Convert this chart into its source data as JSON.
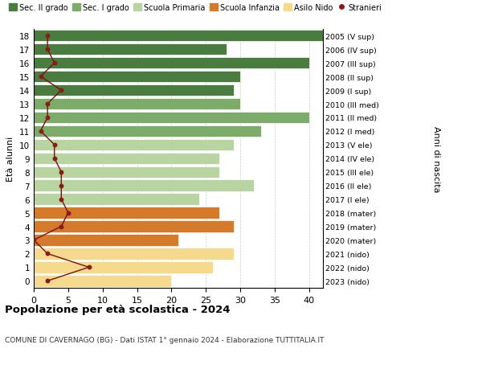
{
  "ages": [
    18,
    17,
    16,
    15,
    14,
    13,
    12,
    11,
    10,
    9,
    8,
    7,
    6,
    5,
    4,
    3,
    2,
    1,
    0
  ],
  "years": [
    "2005 (V sup)",
    "2006 (IV sup)",
    "2007 (III sup)",
    "2008 (II sup)",
    "2009 (I sup)",
    "2010 (III med)",
    "2011 (II med)",
    "2012 (I med)",
    "2013 (V ele)",
    "2014 (IV ele)",
    "2015 (III ele)",
    "2016 (II ele)",
    "2017 (I ele)",
    "2018 (mater)",
    "2019 (mater)",
    "2020 (mater)",
    "2021 (nido)",
    "2022 (nido)",
    "2023 (nido)"
  ],
  "bar_values": [
    42,
    28,
    40,
    30,
    29,
    30,
    40,
    33,
    29,
    27,
    27,
    32,
    24,
    27,
    29,
    21,
    29,
    26,
    20
  ],
  "bar_colors": [
    "#4a7c3f",
    "#4a7c3f",
    "#4a7c3f",
    "#4a7c3f",
    "#4a7c3f",
    "#7dab6a",
    "#7dab6a",
    "#7dab6a",
    "#b8d4a0",
    "#b8d4a0",
    "#b8d4a0",
    "#b8d4a0",
    "#b8d4a0",
    "#d47a2a",
    "#d47a2a",
    "#d47a2a",
    "#f5d98c",
    "#f5d98c",
    "#f5d98c"
  ],
  "stranieri_values": [
    2,
    2,
    3,
    1,
    4,
    2,
    2,
    1,
    3,
    3,
    4,
    4,
    4,
    5,
    4,
    0,
    2,
    8,
    2
  ],
  "legend_labels": [
    "Sec. II grado",
    "Sec. I grado",
    "Scuola Primaria",
    "Scuola Infanzia",
    "Asilo Nido",
    "Stranieri"
  ],
  "legend_colors": [
    "#4a7c3f",
    "#7dab6a",
    "#b8d4a0",
    "#d47a2a",
    "#f5d98c",
    "#8b1a1a"
  ],
  "ylabel_left": "Età alunni",
  "ylabel_right": "Anni di nascita",
  "title": "Popolazione per età scolastica - 2024",
  "subtitle": "COMUNE DI CAVERNAGO (BG) - Dati ISTAT 1° gennaio 2024 - Elaborazione TUTTITALIA.IT",
  "xlim": [
    0,
    42
  ],
  "xticks": [
    0,
    5,
    10,
    15,
    20,
    25,
    30,
    35,
    40
  ],
  "background_color": "#ffffff",
  "grid_color": "#cccccc",
  "bar_edge_color": "#ffffff",
  "line_color": "#7a1010",
  "dot_color": "#8b1a1a"
}
